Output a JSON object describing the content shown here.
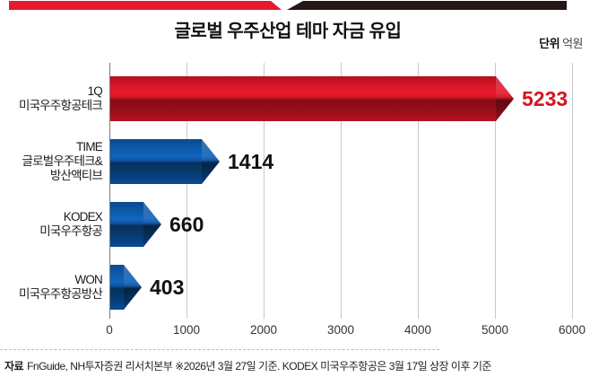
{
  "header": {
    "title": "글로벌 우주산업 테마 자금 유입",
    "unit_label": "단위",
    "unit_value": "억원"
  },
  "footer": {
    "source_label": "자료",
    "source_text": "FnGuide, NH투자증권 리서치본부 ※2026년 3월 27일 기준. KODEX 미국우주항공은 3월 17일 상장 이후 기준"
  },
  "colors": {
    "accent_red": "#e8192c",
    "accent_blue": "#0e5cb0",
    "banner_black": "#231815",
    "value_red": "#d6131f",
    "value_black": "#111111",
    "gridline": "#c9c9c9"
  },
  "chart_data": {
    "type": "bar",
    "orientation": "horizontal",
    "title": "글로벌 우주산업 테마 자금 유입",
    "unit": "억원",
    "categories": [
      "1Q 미국우주항공테크",
      "TIME 글로벌우주테크&방산액티브",
      "KODEX 미국우주항공",
      "WON 미국우주항공방산"
    ],
    "category_lines": [
      [
        "1Q",
        "미국우주항공테크"
      ],
      [
        "TIME",
        "글로벌우주테크&",
        "방산액티브"
      ],
      [
        "KODEX",
        "미국우주항공"
      ],
      [
        "WON",
        "미국우주항공방산"
      ]
    ],
    "values": [
      5233,
      1414,
      660,
      403
    ],
    "bar_colors": [
      "red",
      "blue",
      "blue",
      "blue"
    ],
    "value_label_colors": [
      "#d6131f",
      "#111111",
      "#111111",
      "#111111"
    ],
    "xlabel": "",
    "ylabel": "",
    "xlim": [
      0,
      6000
    ],
    "xticks": [
      0,
      1000,
      2000,
      3000,
      4000,
      5000,
      6000
    ],
    "grid": true,
    "legend": false
  }
}
